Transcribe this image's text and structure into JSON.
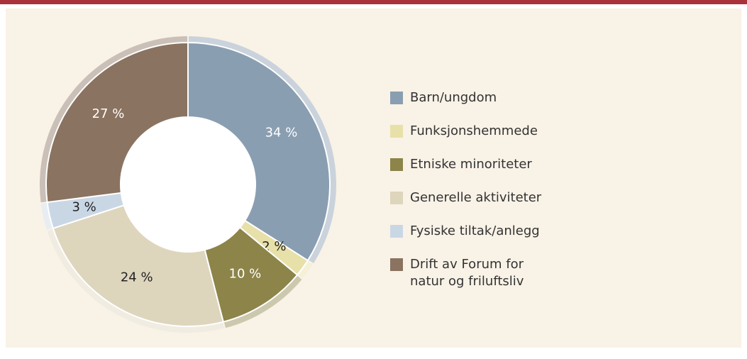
{
  "chart_data": {
    "type": "pie",
    "categories": [
      "Barn/ungdom",
      "Funksjonshemmede",
      "Etniske minoriteter",
      "Generelle aktiviteter",
      "Fysiske tiltak/anlegg",
      "Drift av Forum for natur og friluftsliv"
    ],
    "values": [
      34,
      2,
      10,
      24,
      3,
      27
    ],
    "value_labels": [
      "34 %",
      "2 %",
      "10 %",
      "24 %",
      "3 %",
      "27 %"
    ],
    "colors": [
      "#8a9eb1",
      "#e8e0a9",
      "#8c8449",
      "#ded5bd",
      "#c9d7e5",
      "#8a7360"
    ]
  }
}
